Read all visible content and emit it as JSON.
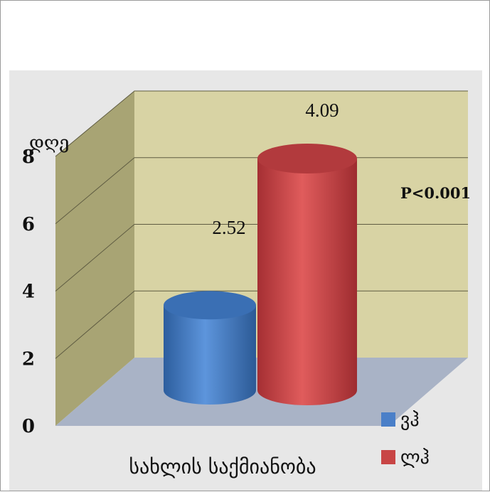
{
  "chart_data": {
    "type": "bar",
    "categories": [
      "სახლის საქმიანობა"
    ],
    "series": [
      {
        "name": "ვჰ",
        "values": [
          2.52
        ],
        "color": "#4a7fc8"
      },
      {
        "name": "ლჰ",
        "values": [
          4.09
        ],
        "color": "#c84545"
      }
    ],
    "xlabel": "სახლის საქმიანობა",
    "ylabel": "დღე",
    "ylim": [
      0,
      8
    ],
    "yticks": [
      "0",
      "2",
      "4",
      "6",
      "8"
    ],
    "grid": true,
    "legend": "bottom-right",
    "annotation": "P<0.001",
    "style": "3d-cylinder",
    "colors": {
      "wall": "#d8d3a4",
      "side_wall": "#a8a474",
      "floor": "#a9b3c6"
    }
  }
}
